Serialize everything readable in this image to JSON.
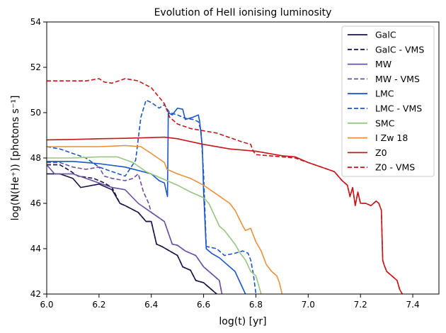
{
  "chart_data": {
    "type": "line",
    "title": "Evolution of HeII ionising luminosity",
    "title_display": "Evolution of HeII ionising luminosity",
    "xlabel": "log(t) [yr]",
    "ylabel": "log(N(He⁺)) [photons s⁻¹]",
    "xlim": [
      6.0,
      7.5
    ],
    "ylim": [
      42,
      54
    ],
    "xticks": [
      6.0,
      6.2,
      6.4,
      6.6,
      6.8,
      7.0,
      7.2,
      7.4
    ],
    "xtick_labels": [
      "6.0",
      "6.2",
      "6.4",
      "6.6",
      "6.8",
      "7.0",
      "7.2",
      "7.4"
    ],
    "yticks": [
      42,
      44,
      46,
      48,
      50,
      52,
      54
    ],
    "ytick_labels": [
      "42",
      "44",
      "46",
      "48",
      "50",
      "52",
      "54"
    ],
    "legend_position": "top-right",
    "series": [
      {
        "name": "GalC",
        "color": "#1a1446",
        "dash": "solid",
        "x": [
          6.0,
          6.05,
          6.1,
          6.13,
          6.2,
          6.25,
          6.28,
          6.3,
          6.35,
          6.38,
          6.4,
          6.42,
          6.44,
          6.47,
          6.5,
          6.52,
          6.55,
          6.57,
          6.6,
          6.62,
          6.64,
          6.65
        ],
        "y": [
          47.3,
          47.3,
          47.1,
          46.7,
          46.85,
          46.6,
          46.0,
          45.9,
          45.6,
          45.2,
          45.2,
          44.2,
          44.1,
          43.9,
          43.7,
          43.2,
          43.05,
          42.6,
          42.5,
          42.3,
          42.1,
          42.0
        ]
      },
      {
        "name": "GalC - VMS",
        "color": "#1a1446",
        "dash": "dashed",
        "x": [
          6.0,
          6.05,
          6.08,
          6.12,
          6.18,
          6.22,
          6.25,
          6.28,
          6.3,
          6.35,
          6.38,
          6.4,
          6.42,
          6.44,
          6.47,
          6.5,
          6.52,
          6.55,
          6.57,
          6.6,
          6.62,
          6.64,
          6.65
        ],
        "y": [
          47.7,
          47.7,
          47.5,
          47.2,
          47.1,
          46.9,
          46.7,
          46.0,
          45.9,
          45.6,
          45.2,
          45.2,
          44.2,
          44.1,
          43.9,
          43.7,
          43.2,
          43.05,
          42.6,
          42.5,
          42.3,
          42.1,
          42.0
        ]
      },
      {
        "name": "MW",
        "color": "#6a51a3",
        "dash": "solid",
        "x": [
          6.0,
          6.03,
          6.1,
          6.15,
          6.2,
          6.25,
          6.3,
          6.35,
          6.4,
          6.45,
          6.48,
          6.5,
          6.53,
          6.57,
          6.6,
          6.62,
          6.64,
          6.66,
          6.67
        ],
        "y": [
          47.7,
          47.3,
          47.3,
          47.1,
          46.9,
          46.7,
          46.6,
          46.0,
          45.6,
          45.2,
          44.2,
          44.15,
          43.9,
          43.7,
          43.2,
          43.0,
          42.8,
          42.6,
          42.0
        ]
      },
      {
        "name": "MW - VMS",
        "color": "#6a51a3",
        "dash": "dashed",
        "x": [
          6.0,
          6.05,
          6.1,
          6.15,
          6.2,
          6.22,
          6.25,
          6.3,
          6.33,
          6.35,
          6.37,
          6.39,
          6.4,
          6.45,
          6.48,
          6.5,
          6.53,
          6.57,
          6.6,
          6.62,
          6.64,
          6.66,
          6.67
        ],
        "y": [
          47.8,
          47.8,
          47.6,
          47.5,
          47.6,
          47.2,
          47.1,
          47.0,
          47.1,
          47.3,
          46.5,
          46.0,
          45.6,
          45.2,
          44.2,
          44.15,
          43.9,
          43.7,
          43.2,
          43.0,
          42.8,
          42.6,
          42.0
        ]
      },
      {
        "name": "LMC",
        "color": "#1a56c8",
        "dash": "solid",
        "x": [
          6.0,
          6.1,
          6.2,
          6.3,
          6.4,
          6.43,
          6.45,
          6.462,
          6.465,
          6.48,
          6.5,
          6.52,
          6.53,
          6.56,
          6.58,
          6.585,
          6.595,
          6.6,
          6.61,
          6.63,
          6.66,
          6.68,
          6.7,
          6.72,
          6.74,
          6.76
        ],
        "y": [
          47.85,
          47.85,
          47.75,
          47.6,
          47.3,
          47.0,
          46.9,
          46.3,
          50.0,
          49.9,
          50.2,
          50.15,
          49.7,
          49.8,
          49.9,
          49.6,
          48.5,
          46.5,
          44.0,
          43.8,
          43.6,
          43.4,
          43.2,
          43.0,
          42.5,
          42.0
        ]
      },
      {
        "name": "LMC - VMS",
        "color": "#1a56c8",
        "dash": "dashed",
        "x": [
          6.0,
          6.05,
          6.1,
          6.15,
          6.2,
          6.25,
          6.3,
          6.34,
          6.36,
          6.38,
          6.4,
          6.43,
          6.45,
          6.47,
          6.5,
          6.53,
          6.56,
          6.58,
          6.59,
          6.6,
          6.61,
          6.65,
          6.68,
          6.72,
          6.75,
          6.77,
          6.78,
          6.79,
          6.8
        ],
        "y": [
          48.5,
          48.4,
          48.2,
          48.0,
          47.6,
          47.4,
          47.2,
          47.9,
          49.8,
          50.55,
          50.45,
          50.2,
          50.35,
          50.0,
          49.9,
          49.75,
          49.7,
          49.6,
          49.2,
          47.3,
          44.1,
          44.0,
          43.7,
          43.8,
          43.9,
          43.8,
          43.5,
          42.9,
          42.0
        ]
      },
      {
        "name": "SMC",
        "color": "#98c582",
        "dash": "solid",
        "x": [
          6.0,
          6.1,
          6.2,
          6.27,
          6.33,
          6.38,
          6.42,
          6.46,
          6.5,
          6.55,
          6.6,
          6.62,
          6.64,
          6.66,
          6.68,
          6.7,
          6.72,
          6.74,
          6.76,
          6.78,
          6.8,
          6.81,
          6.82
        ],
        "y": [
          48.0,
          48.0,
          48.05,
          48.05,
          47.8,
          47.4,
          47.2,
          47.0,
          46.8,
          46.5,
          46.25,
          46.0,
          45.5,
          45.0,
          44.8,
          44.5,
          44.2,
          43.8,
          43.5,
          43.0,
          42.8,
          42.4,
          42.0
        ]
      },
      {
        "name": "I Zw 18",
        "color": "#e9913a",
        "dash": "solid",
        "x": [
          6.0,
          6.1,
          6.2,
          6.3,
          6.36,
          6.4,
          6.45,
          6.46,
          6.5,
          6.55,
          6.6,
          6.65,
          6.7,
          6.72,
          6.75,
          6.76,
          6.78,
          6.8,
          6.82,
          6.84,
          6.86,
          6.88,
          6.89,
          6.9
        ],
        "y": [
          48.5,
          48.5,
          48.5,
          48.55,
          48.5,
          48.2,
          47.8,
          47.5,
          47.3,
          47.1,
          46.8,
          46.4,
          46.0,
          45.7,
          45.0,
          44.8,
          44.9,
          44.3,
          43.9,
          43.3,
          43.0,
          42.8,
          42.5,
          42.0
        ]
      },
      {
        "name": "Z0",
        "color": "#c8161a",
        "dash": "solid",
        "x": [
          6.0,
          6.1,
          6.2,
          6.3,
          6.4,
          6.45,
          6.5,
          6.6,
          6.7,
          6.8,
          6.85,
          6.9,
          6.95,
          7.0,
          7.05,
          7.1,
          7.13,
          7.15,
          7.16,
          7.17,
          7.18,
          7.19,
          7.2,
          7.22,
          7.24,
          7.25,
          7.26,
          7.27,
          7.28,
          7.285,
          7.29,
          7.3,
          7.32,
          7.34,
          7.35,
          7.36
        ],
        "y": [
          48.8,
          48.82,
          48.85,
          48.87,
          48.9,
          48.92,
          48.85,
          48.6,
          48.4,
          48.3,
          48.2,
          48.1,
          48.05,
          47.8,
          47.6,
          47.4,
          47.0,
          46.8,
          46.3,
          46.7,
          45.9,
          46.5,
          46.0,
          46.0,
          45.9,
          46.0,
          46.1,
          46.0,
          45.7,
          43.5,
          43.3,
          43.0,
          42.8,
          42.6,
          42.2,
          42.0
        ]
      },
      {
        "name": "Z0 - VMS",
        "color": "#c8161a",
        "dash": "dashed",
        "x": [
          6.0,
          6.05,
          6.1,
          6.15,
          6.2,
          6.22,
          6.25,
          6.3,
          6.35,
          6.4,
          6.45,
          6.47,
          6.5,
          6.55,
          6.6,
          6.65,
          6.7,
          6.75,
          6.78,
          6.79,
          6.8,
          6.85,
          6.9,
          6.95,
          7.0,
          7.05,
          7.1,
          7.13,
          7.15,
          7.16,
          7.17,
          7.18,
          7.19,
          7.2,
          7.22,
          7.24,
          7.25,
          7.26,
          7.27,
          7.28,
          7.285,
          7.29,
          7.3,
          7.32,
          7.34,
          7.35,
          7.36
        ],
        "y": [
          51.4,
          51.4,
          51.4,
          51.4,
          51.5,
          51.35,
          51.3,
          51.5,
          51.4,
          51.1,
          50.4,
          49.8,
          49.5,
          49.3,
          49.2,
          49.1,
          48.9,
          48.7,
          48.6,
          48.3,
          48.15,
          48.1,
          48.05,
          48.0,
          47.8,
          47.6,
          47.4,
          47.0,
          46.8,
          46.3,
          46.7,
          45.9,
          46.5,
          46.0,
          46.0,
          45.9,
          46.0,
          46.1,
          46.0,
          45.7,
          43.5,
          43.3,
          43.0,
          42.8,
          42.6,
          42.2,
          42.0
        ]
      }
    ]
  }
}
